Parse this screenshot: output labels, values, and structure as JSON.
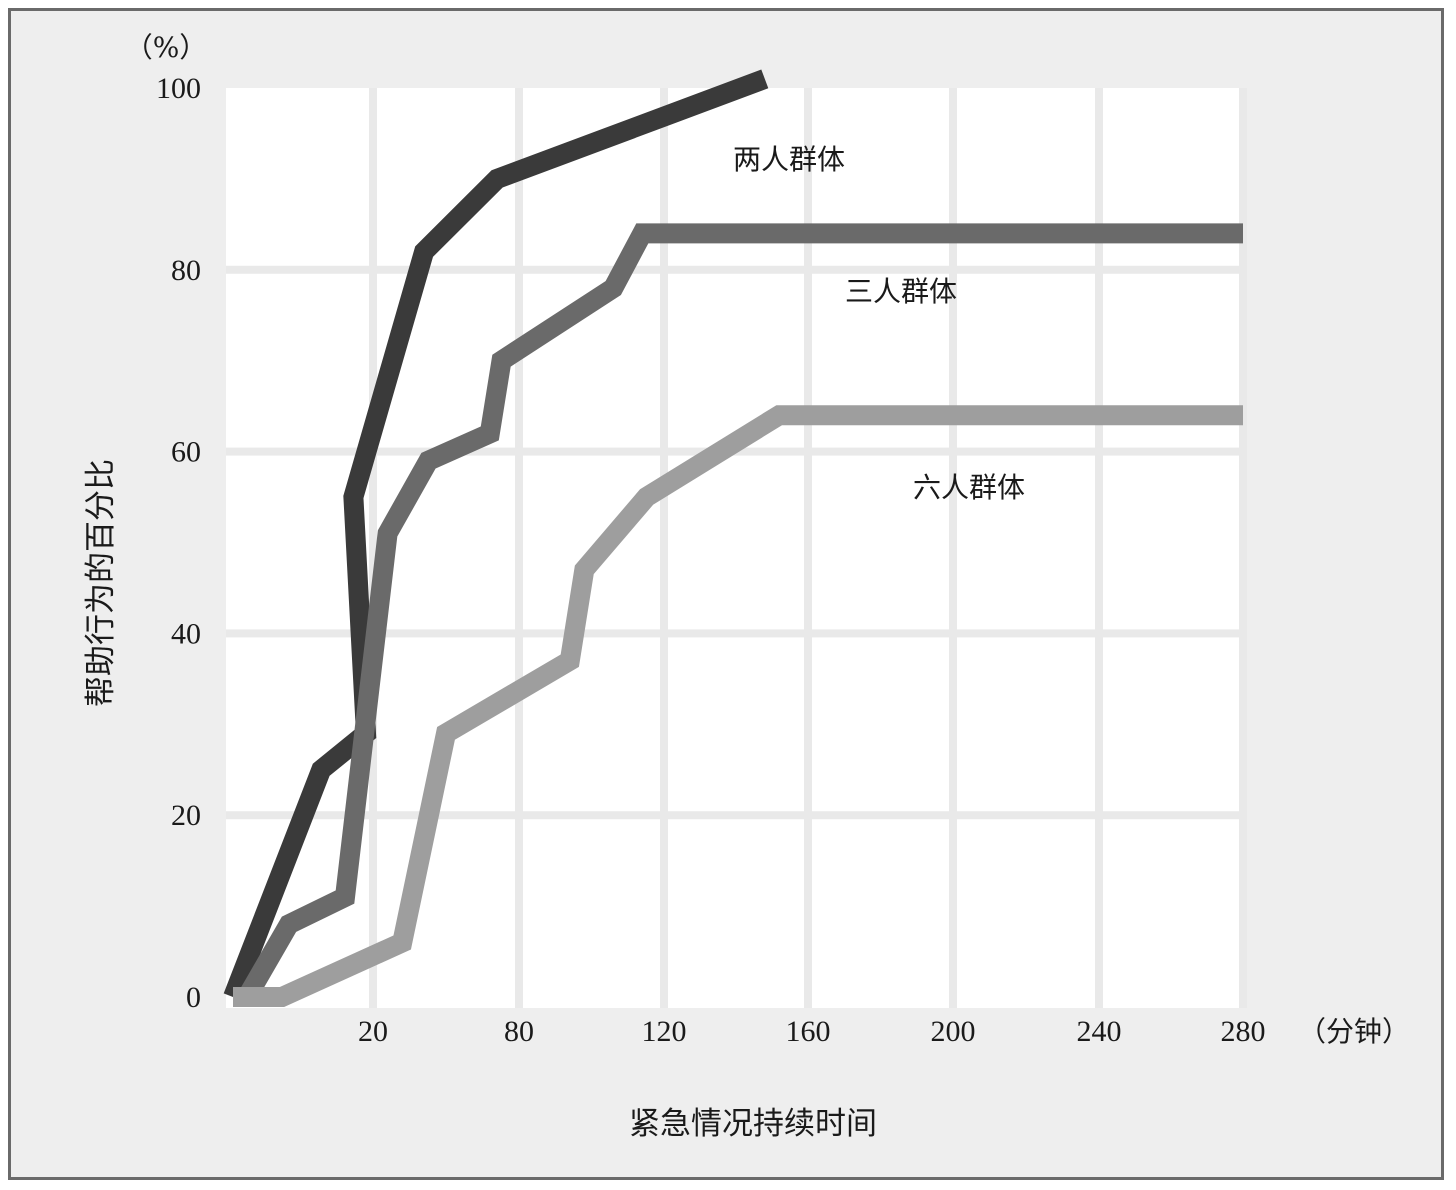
{
  "chart_data": {
    "type": "line",
    "title": "",
    "xlabel": "紧急情况持续时间",
    "ylabel": "帮助行为的百分比",
    "x_unit": "（分钟）",
    "y_unit": "（%）",
    "x_ticks": [
      {
        "label": "20",
        "pos": 1
      },
      {
        "label": "80",
        "pos": 2
      },
      {
        "label": "120",
        "pos": 3
      },
      {
        "label": "160",
        "pos": 4
      },
      {
        "label": "200",
        "pos": 5
      },
      {
        "label": "240",
        "pos": 6
      },
      {
        "label": "280",
        "pos": 7
      }
    ],
    "y_ticks": [
      "0",
      "20",
      "40",
      "60",
      "80",
      "100"
    ],
    "ylim": [
      0,
      100
    ],
    "grid": true,
    "series": [
      {
        "name": "两人群体",
        "color": "#3a3a3a",
        "points": [
          [
            0,
            0
          ],
          [
            0.63,
            25
          ],
          [
            0.95,
            29
          ],
          [
            0.86,
            55
          ],
          [
            1.35,
            82
          ],
          [
            1.85,
            90
          ],
          [
            3.7,
            101
          ]
        ]
      },
      {
        "name": "三人群体",
        "color": "#6a6a6a",
        "points": [
          [
            0.1,
            0
          ],
          [
            0.4,
            8
          ],
          [
            0.8,
            11
          ],
          [
            1.1,
            51
          ],
          [
            1.38,
            59
          ],
          [
            1.8,
            62
          ],
          [
            1.88,
            70
          ],
          [
            2.65,
            78
          ],
          [
            2.85,
            84
          ],
          [
            7,
            84
          ]
        ]
      },
      {
        "name": "六人群体",
        "color": "#9e9e9e",
        "points": [
          [
            0,
            0
          ],
          [
            0.35,
            0
          ],
          [
            1.2,
            6
          ],
          [
            1.5,
            29
          ],
          [
            2.35,
            37
          ],
          [
            2.45,
            47
          ],
          [
            2.88,
            55
          ],
          [
            3.8,
            64
          ],
          [
            7,
            64
          ]
        ]
      }
    ]
  }
}
